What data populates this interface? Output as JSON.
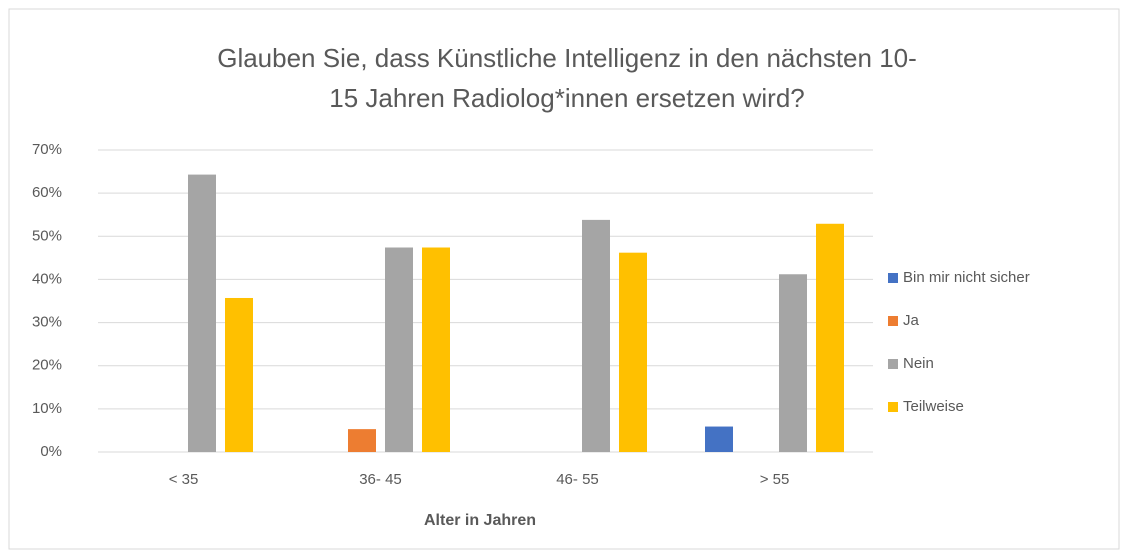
{
  "chart_data": {
    "type": "bar",
    "title": [
      "Glauben Sie, dass Künstliche Intelligenz in den nächsten 10-",
      "15 Jahren Radiolog*innen ersetzen wird?"
    ],
    "x_label": "Alter in Jahren",
    "categories": [
      "< 35",
      "36- 45",
      "46- 55",
      "> 55"
    ],
    "series": [
      {
        "name": "Bin mir nicht sicher",
        "color": "#4472c4",
        "values": [
          0,
          0,
          0,
          5.9
        ]
      },
      {
        "name": "Ja",
        "color": "#ed7d31",
        "values": [
          0,
          5.3,
          0,
          0
        ]
      },
      {
        "name": "Nein",
        "color": "#a5a5a5",
        "values": [
          64.3,
          47.4,
          53.8,
          41.2
        ]
      },
      {
        "name": "Teilweise",
        "color": "#ffc000",
        "values": [
          35.7,
          47.4,
          46.2,
          52.9
        ]
      }
    ],
    "ylim": [
      0,
      70
    ],
    "yticks": [
      {
        "value": 0,
        "label": "0%"
      },
      {
        "value": 10,
        "label": "10%"
      },
      {
        "value": 20,
        "label": "20%"
      },
      {
        "value": 30,
        "label": "30%"
      },
      {
        "value": 40,
        "label": "40%"
      },
      {
        "value": 50,
        "label": "50%"
      },
      {
        "value": 60,
        "label": "60%"
      },
      {
        "value": 70,
        "label": "70%"
      }
    ],
    "grid": true,
    "legend": "right"
  }
}
